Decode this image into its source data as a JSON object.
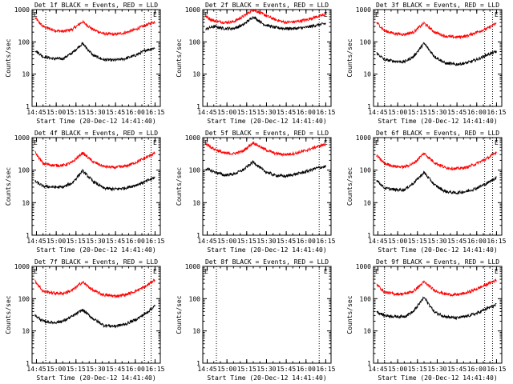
{
  "chart_data": [
    {
      "type": "line",
      "title": "Det 1f BLACK = Events, RED = LLD",
      "xlabel": "Start Time (20-Dec-12 14:41:40)",
      "ylabel": "Counts/sec",
      "yscale": "log",
      "ylim": [
        1,
        1000
      ],
      "xlim": [
        "14:41:40",
        "16:19:00"
      ],
      "yticks": [
        "1",
        "10",
        "100",
        "1000"
      ],
      "xticks": [
        "14:45",
        "15:00",
        "15:15",
        "15:30",
        "15:45",
        "16:00",
        "16:15"
      ],
      "corner_marks": [
        "E",
        "E"
      ],
      "vlines": [
        "14:52",
        "16:07",
        "16:12"
      ],
      "series": [
        {
          "color": "#ff0000",
          "x": [
            "14:44",
            "14:50",
            "14:58",
            "15:05",
            "15:12",
            "15:20",
            "15:28",
            "15:36",
            "15:44",
            "15:52",
            "16:00",
            "16:08",
            "16:15"
          ],
          "y": [
            550,
            300,
            230,
            210,
            240,
            420,
            240,
            180,
            170,
            190,
            240,
            330,
            420
          ]
        },
        {
          "color": "#000000",
          "x": [
            "14:44",
            "14:50",
            "14:58",
            "15:05",
            "15:12",
            "15:20",
            "15:28",
            "15:36",
            "15:44",
            "15:52",
            "16:00",
            "16:08",
            "16:15"
          ],
          "y": [
            55,
            35,
            30,
            30,
            45,
            90,
            38,
            28,
            27,
            30,
            38,
            55,
            65
          ]
        }
      ]
    },
    {
      "type": "line",
      "title": "Det 2f BLACK = Events, RED = LLD",
      "xlabel": "Start Time (20-Dec-12 14:41:40)",
      "ylabel": "Counts/sec",
      "yscale": "log",
      "ylim": [
        1,
        1000
      ],
      "xlim": [
        "14:41:40",
        "16:19:00"
      ],
      "yticks": [
        "1",
        "10",
        "100",
        "1000"
      ],
      "xticks": [
        "14:45",
        "15:00",
        "15:15",
        "15:30",
        "15:45",
        "16:00",
        "16:15"
      ],
      "corner_marks": [
        "E",
        "E"
      ],
      "vlines": [
        "14:52",
        "16:10"
      ],
      "series": [
        {
          "color": "#ff0000",
          "x": [
            "14:44",
            "14:50",
            "14:58",
            "15:05",
            "15:12",
            "15:20",
            "15:28",
            "15:36",
            "15:44",
            "15:52",
            "16:00",
            "16:08",
            "16:15"
          ],
          "y": [
            600,
            450,
            400,
            420,
            600,
            1000,
            700,
            500,
            400,
            420,
            480,
            600,
            700
          ]
        },
        {
          "color": "#000000",
          "x": [
            "14:44",
            "14:50",
            "14:58",
            "15:05",
            "15:12",
            "15:20",
            "15:28",
            "15:36",
            "15:44",
            "15:52",
            "16:00",
            "16:08",
            "16:15"
          ],
          "y": [
            250,
            300,
            260,
            260,
            330,
            600,
            350,
            280,
            260,
            260,
            280,
            330,
            370
          ]
        }
      ]
    },
    {
      "type": "line",
      "title": "Det 3f BLACK = Events, RED = LLD",
      "xlabel": "Start Time (20-Dec-12 14:41:40)",
      "ylabel": "Counts/sec",
      "yscale": "log",
      "ylim": [
        1,
        1000
      ],
      "xlim": [
        "14:41:40",
        "16:19:00"
      ],
      "yticks": [
        "1",
        "10",
        "100",
        "1000"
      ],
      "xticks": [
        "14:45",
        "15:00",
        "15:15",
        "15:30",
        "15:45",
        "16:00",
        "16:15"
      ],
      "corner_marks": [
        "E",
        "E"
      ],
      "vlines": [
        "14:50",
        "16:06",
        "16:12"
      ],
      "series": [
        {
          "color": "#ff0000",
          "x": [
            "14:44",
            "14:50",
            "14:58",
            "15:05",
            "15:12",
            "15:20",
            "15:28",
            "15:36",
            "15:44",
            "15:52",
            "16:00",
            "16:08",
            "16:15"
          ],
          "y": [
            400,
            220,
            180,
            170,
            200,
            380,
            200,
            150,
            140,
            150,
            200,
            260,
            380
          ]
        },
        {
          "color": "#000000",
          "x": [
            "14:44",
            "14:50",
            "14:58",
            "15:05",
            "15:12",
            "15:20",
            "15:28",
            "15:36",
            "15:44",
            "15:52",
            "16:00",
            "16:08",
            "16:15"
          ],
          "y": [
            45,
            28,
            25,
            24,
            35,
            90,
            35,
            22,
            20,
            22,
            28,
            40,
            50
          ]
        }
      ]
    },
    {
      "type": "line",
      "title": "Det 4f BLACK = Events, RED = LLD",
      "xlabel": "Start Time (20-Dec-12 14:41:40)",
      "ylabel": "Counts/sec",
      "yscale": "log",
      "ylim": [
        1,
        1000
      ],
      "xlim": [
        "14:41:40",
        "16:19:00"
      ],
      "yticks": [
        "1",
        "10",
        "100",
        "1000"
      ],
      "xticks": [
        "14:45",
        "15:00",
        "15:15",
        "15:30",
        "15:45",
        "16:00",
        "16:15"
      ],
      "corner_marks": [
        "E",
        "E"
      ],
      "vlines": [
        "14:52",
        "16:07",
        "16:12"
      ],
      "series": [
        {
          "color": "#ff0000",
          "x": [
            "14:44",
            "14:50",
            "14:58",
            "15:05",
            "15:12",
            "15:20",
            "15:28",
            "15:36",
            "15:44",
            "15:52",
            "16:00",
            "16:08",
            "16:15"
          ],
          "y": [
            350,
            160,
            140,
            140,
            170,
            340,
            180,
            130,
            120,
            130,
            170,
            240,
            340
          ]
        },
        {
          "color": "#000000",
          "x": [
            "14:44",
            "14:50",
            "14:58",
            "15:05",
            "15:12",
            "15:20",
            "15:28",
            "15:36",
            "15:44",
            "15:52",
            "16:00",
            "16:08",
            "16:15"
          ],
          "y": [
            45,
            32,
            30,
            30,
            40,
            95,
            45,
            28,
            26,
            28,
            34,
            45,
            60
          ]
        }
      ]
    },
    {
      "type": "line",
      "title": "Det 5f BLACK = Events, RED = LLD",
      "xlabel": "Start Time (20-Dec-12 14:41:40)",
      "ylabel": "Counts/sec",
      "yscale": "log",
      "ylim": [
        1,
        1000
      ],
      "xlim": [
        "14:41:40",
        "16:19:00"
      ],
      "yticks": [
        "1",
        "10",
        "100",
        "1000"
      ],
      "xticks": [
        "14:45",
        "15:00",
        "15:15",
        "15:30",
        "15:45",
        "16:00",
        "16:15"
      ],
      "corner_marks": [
        "E",
        "E"
      ],
      "vlines": [
        "14:52",
        "16:10"
      ],
      "series": [
        {
          "color": "#ff0000",
          "x": [
            "14:44",
            "14:50",
            "14:58",
            "15:05",
            "15:12",
            "15:20",
            "15:28",
            "15:36",
            "15:44",
            "15:52",
            "16:00",
            "16:08",
            "16:15"
          ],
          "y": [
            650,
            450,
            330,
            320,
            380,
            700,
            450,
            330,
            300,
            330,
            400,
            520,
            620
          ]
        },
        {
          "color": "#000000",
          "x": [
            "14:44",
            "14:50",
            "14:58",
            "15:05",
            "15:12",
            "15:20",
            "15:28",
            "15:36",
            "15:44",
            "15:52",
            "16:00",
            "16:08",
            "16:15"
          ],
          "y": [
            110,
            90,
            70,
            75,
            100,
            180,
            95,
            70,
            65,
            75,
            90,
            115,
            130
          ]
        }
      ]
    },
    {
      "type": "line",
      "title": "Det 6f BLACK = Events, RED = LLD",
      "xlabel": "Start Time (20-Dec-12 14:41:40)",
      "ylabel": "Counts/sec",
      "yscale": "log",
      "ylim": [
        1,
        1000
      ],
      "xlim": [
        "14:41:40",
        "16:19:00"
      ],
      "yticks": [
        "1",
        "10",
        "100",
        "1000"
      ],
      "xticks": [
        "14:45",
        "15:00",
        "15:15",
        "15:30",
        "15:45",
        "16:00",
        "16:15"
      ],
      "corner_marks": [
        "E",
        "E"
      ],
      "vlines": [
        "14:50",
        "16:06",
        "16:12"
      ],
      "series": [
        {
          "color": "#ff0000",
          "x": [
            "14:44",
            "14:50",
            "14:58",
            "15:05",
            "15:12",
            "15:20",
            "15:28",
            "15:36",
            "15:44",
            "15:52",
            "16:00",
            "16:08",
            "16:15"
          ],
          "y": [
            280,
            160,
            130,
            125,
            160,
            330,
            170,
            120,
            110,
            120,
            160,
            230,
            360
          ]
        },
        {
          "color": "#000000",
          "x": [
            "14:44",
            "14:50",
            "14:58",
            "15:05",
            "15:12",
            "15:20",
            "15:28",
            "15:36",
            "15:44",
            "15:52",
            "16:00",
            "16:08",
            "16:15"
          ],
          "y": [
            50,
            28,
            25,
            25,
            40,
            85,
            35,
            22,
            20,
            22,
            28,
            40,
            60
          ]
        }
      ]
    },
    {
      "type": "line",
      "title": "Det 7f BLACK = Events, RED = LLD",
      "xlabel": "Start Time (20-Dec-12 14:41:40)",
      "ylabel": "Counts/sec",
      "yscale": "log",
      "ylim": [
        1,
        1000
      ],
      "xlim": [
        "14:41:40",
        "16:19:00"
      ],
      "yticks": [
        "1",
        "10",
        "100",
        "1000"
      ],
      "xticks": [
        "14:45",
        "15:00",
        "15:15",
        "15:30",
        "15:45",
        "16:00",
        "16:15"
      ],
      "corner_marks": [
        "E",
        "E"
      ],
      "vlines": [
        "14:52",
        "16:07",
        "16:12"
      ],
      "series": [
        {
          "color": "#ff0000",
          "x": [
            "14:44",
            "14:50",
            "14:58",
            "15:05",
            "15:12",
            "15:20",
            "15:28",
            "15:36",
            "15:44",
            "15:52",
            "16:00",
            "16:08",
            "16:15"
          ],
          "y": [
            350,
            170,
            150,
            145,
            180,
            330,
            180,
            130,
            120,
            130,
            170,
            240,
            400
          ]
        },
        {
          "color": "#000000",
          "x": [
            "14:44",
            "14:50",
            "14:58",
            "15:05",
            "15:12",
            "15:20",
            "15:28",
            "15:36",
            "15:44",
            "15:52",
            "16:00",
            "16:08",
            "16:15"
          ],
          "y": [
            30,
            20,
            18,
            20,
            28,
            45,
            24,
            15,
            14,
            16,
            22,
            35,
            60
          ]
        }
      ]
    },
    {
      "type": "line",
      "title": "Det 8f BLACK = Events, RED = LLD",
      "xlabel": "Start Time (20-Dec-12 14:41:40)",
      "ylabel": "Counts/sec",
      "yscale": "log",
      "ylim": [
        1,
        1000
      ],
      "xlim": [
        "14:41:40",
        "16:19:00"
      ],
      "yticks": [
        "1",
        "10",
        "100",
        "1000"
      ],
      "xticks": [
        "14:45",
        "15:00",
        "15:15",
        "15:30",
        "15:45",
        "16:00",
        "16:15"
      ],
      "corner_marks": [
        "E",
        "E"
      ],
      "vlines": [
        "14:52",
        "16:10"
      ],
      "series": []
    },
    {
      "type": "line",
      "title": "Det 9f BLACK = Events, RED = LLD",
      "xlabel": "Start Time (20-Dec-12 14:41:40)",
      "ylabel": "Counts/sec",
      "yscale": "log",
      "ylim": [
        1,
        1000
      ],
      "xlim": [
        "14:41:40",
        "16:19:00"
      ],
      "yticks": [
        "1",
        "10",
        "100",
        "1000"
      ],
      "xticks": [
        "14:45",
        "15:00",
        "15:15",
        "15:30",
        "15:45",
        "16:00",
        "16:15"
      ],
      "corner_marks": [
        "E",
        "E"
      ],
      "vlines": [
        "14:50",
        "16:06",
        "16:12"
      ],
      "series": [
        {
          "color": "#ff0000",
          "x": [
            "14:44",
            "14:50",
            "14:58",
            "15:05",
            "15:12",
            "15:20",
            "15:28",
            "15:36",
            "15:44",
            "15:52",
            "16:00",
            "16:08",
            "16:15"
          ],
          "y": [
            280,
            160,
            140,
            140,
            170,
            330,
            180,
            140,
            130,
            150,
            200,
            280,
            380
          ]
        },
        {
          "color": "#000000",
          "x": [
            "14:44",
            "14:50",
            "14:58",
            "15:05",
            "15:12",
            "15:20",
            "15:28",
            "15:36",
            "15:44",
            "15:52",
            "16:00",
            "16:08",
            "16:15"
          ],
          "y": [
            40,
            30,
            28,
            28,
            40,
            110,
            38,
            28,
            25,
            28,
            35,
            50,
            65
          ]
        }
      ]
    }
  ]
}
